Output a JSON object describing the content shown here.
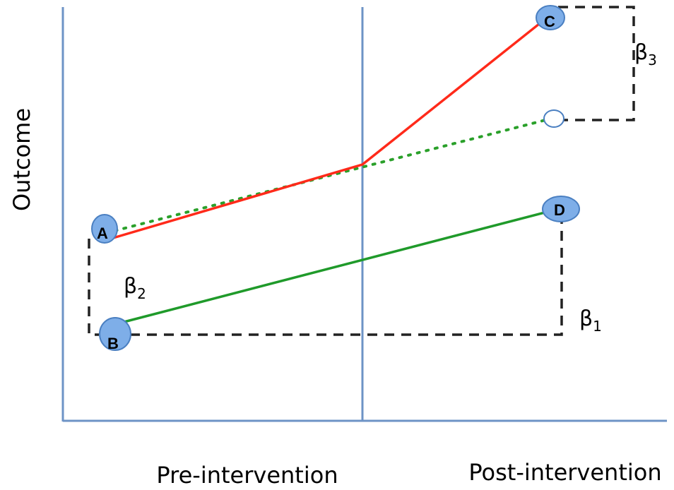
{
  "axes": {
    "y_label": "Outcome",
    "x_label_pre": "Pre-intervention",
    "x_label_post": "Post-intervention"
  },
  "points": {
    "a": "A",
    "b": "B",
    "c": "C",
    "d": "D"
  },
  "betas": {
    "b1_symbol": "β",
    "b1_sub": "1",
    "b2_symbol": "β",
    "b2_sub": "2",
    "b3_symbol": "β",
    "b3_sub": "3"
  },
  "colors": {
    "axis": "#6d93c6",
    "intervention_line": "#6d93c6",
    "treated_line": "#ff2a1a",
    "control_line": "#1f9a2a",
    "counterfactual_line": "#2aa02a",
    "bracket": "#222222",
    "marker_fill": "#7eaee8",
    "marker_stroke": "#4a7fc1",
    "hollow_marker_stroke": "#4a7fc1"
  },
  "icons": {
    "point_marker": "blue-ellipse-marker",
    "counterfactual_marker": "hollow-ellipse-marker"
  }
}
